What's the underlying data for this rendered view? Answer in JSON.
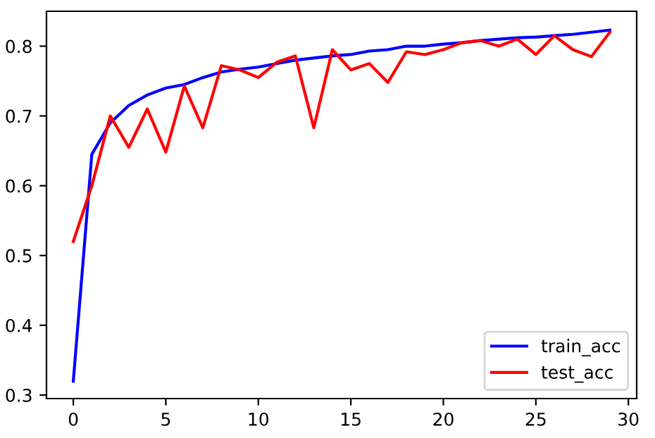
{
  "chart_data": {
    "type": "line",
    "x": [
      0,
      1,
      2,
      3,
      4,
      5,
      6,
      7,
      8,
      9,
      10,
      11,
      12,
      13,
      14,
      15,
      16,
      17,
      18,
      19,
      20,
      21,
      22,
      23,
      24,
      25,
      26,
      27,
      28,
      29
    ],
    "series": [
      {
        "name": "train_acc",
        "color": "#0000ff",
        "values": [
          0.32,
          0.645,
          0.69,
          0.715,
          0.73,
          0.74,
          0.745,
          0.755,
          0.763,
          0.767,
          0.77,
          0.775,
          0.78,
          0.783,
          0.786,
          0.788,
          0.793,
          0.795,
          0.8,
          0.8,
          0.803,
          0.805,
          0.808,
          0.81,
          0.812,
          0.813,
          0.815,
          0.817,
          0.82,
          0.823
        ]
      },
      {
        "name": "test_acc",
        "color": "#ff0000",
        "values": [
          0.52,
          0.6,
          0.7,
          0.655,
          0.71,
          0.648,
          0.743,
          0.683,
          0.772,
          0.766,
          0.755,
          0.777,
          0.786,
          0.683,
          0.795,
          0.766,
          0.775,
          0.748,
          0.792,
          0.788,
          0.795,
          0.805,
          0.808,
          0.8,
          0.81,
          0.788,
          0.815,
          0.795,
          0.785,
          0.82
        ]
      }
    ],
    "xlim": [
      -1.45,
      30.45
    ],
    "ylim": [
      0.295,
      0.85
    ],
    "xticks": [
      0,
      5,
      10,
      15,
      20,
      25,
      30
    ],
    "yticks": [
      0.3,
      0.4,
      0.5,
      0.6,
      0.7,
      0.8
    ],
    "legend": "bottom right",
    "grid": false,
    "marker": "none",
    "line_style": "solid"
  }
}
